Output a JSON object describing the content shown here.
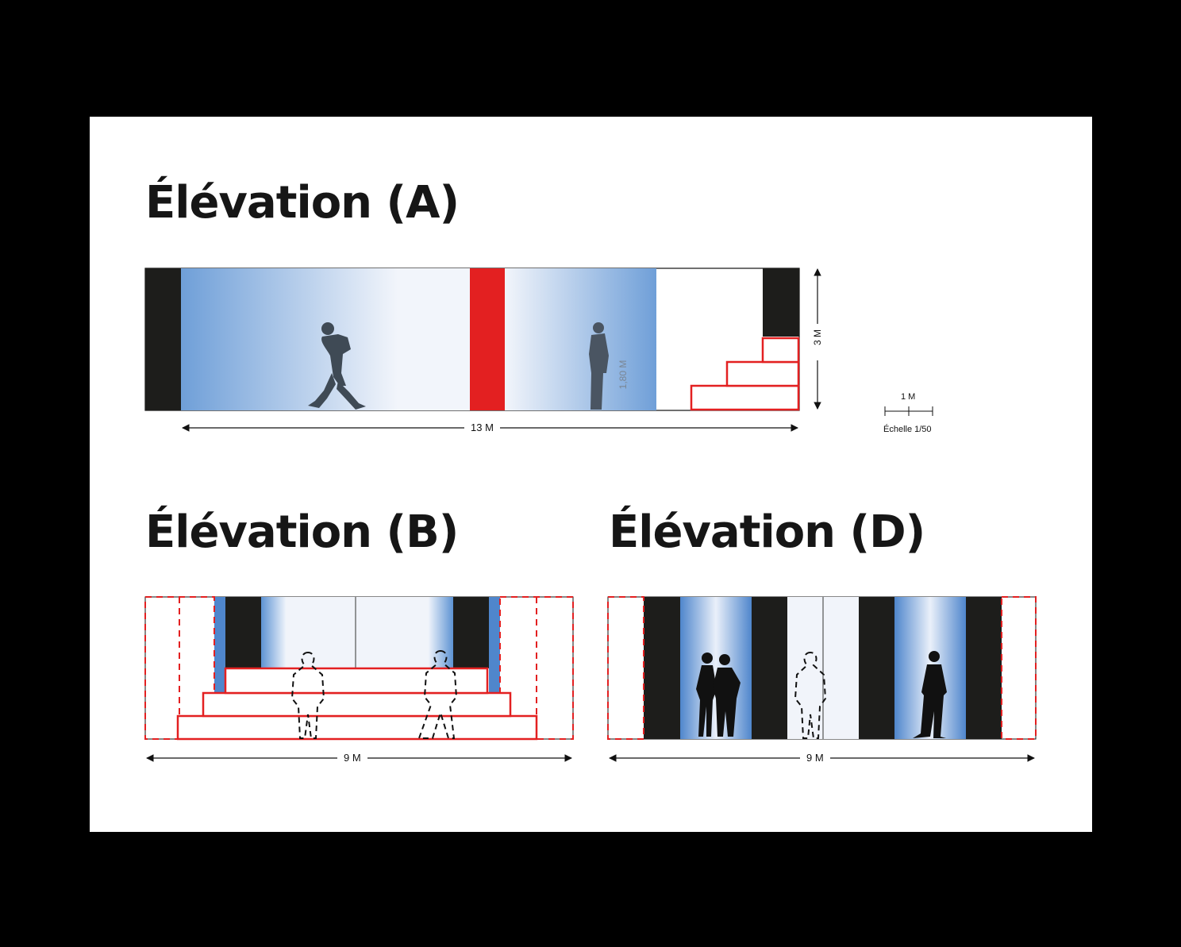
{
  "colors": {
    "black": "#1d1d1b",
    "red": "#e32021",
    "blue": "#6f9fd8",
    "light": "#f2f5fb"
  },
  "icons": [
    "walking-person-silhouette",
    "standing-person-silhouette",
    "dashed-person-outline",
    "couple-silhouette"
  ],
  "elevation_a": {
    "title": "Élévation (A)",
    "width_label": "13 M",
    "height_label": "3 M",
    "person_height": "1,80 M"
  },
  "scale": {
    "unit_label": "1 M",
    "caption": "Échelle 1/50"
  },
  "elevation_b": {
    "title": "Élévation (B)",
    "width_label": "9 M"
  },
  "elevation_d": {
    "title": "Élévation (D)",
    "width_label": "9 M"
  }
}
